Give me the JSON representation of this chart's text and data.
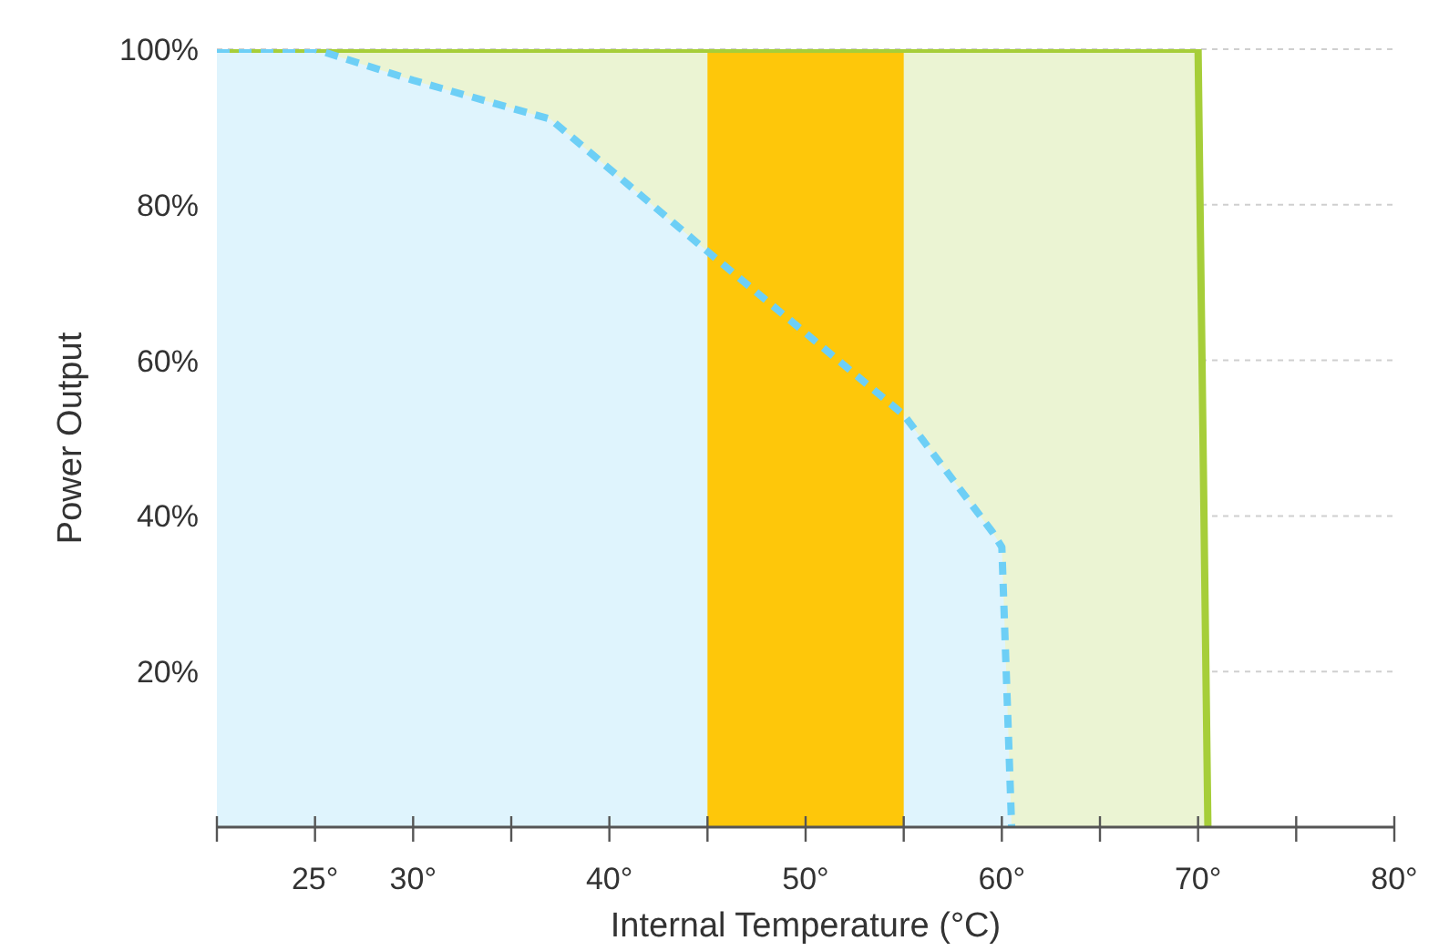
{
  "chart_data": {
    "type": "area",
    "xlabel": "Internal Temperature (°C)",
    "ylabel": "Power Output",
    "xlim": [
      20,
      80
    ],
    "xticks": [
      {
        "value": 20,
        "label": null
      },
      {
        "value": 25,
        "label": "25°"
      },
      {
        "value": 30,
        "label": "30°"
      },
      {
        "value": 35,
        "label": null
      },
      {
        "value": 40,
        "label": "40°"
      },
      {
        "value": 45,
        "label": null
      },
      {
        "value": 50,
        "label": "50°"
      },
      {
        "value": 55,
        "label": null
      },
      {
        "value": 60,
        "label": "60°"
      },
      {
        "value": 65,
        "label": null
      },
      {
        "value": 70,
        "label": "70°"
      },
      {
        "value": 75,
        "label": null
      },
      {
        "value": 80,
        "label": "80°"
      }
    ],
    "ylim": [
      0,
      100
    ],
    "yticks": [
      {
        "value": 20,
        "label": "20%"
      },
      {
        "value": 40,
        "label": "40%"
      },
      {
        "value": 60,
        "label": "60%"
      },
      {
        "value": 80,
        "label": "80%"
      },
      {
        "value": 100,
        "label": "100%"
      }
    ],
    "grid": "y",
    "marker": "none",
    "bands": [
      {
        "axis": "x",
        "from": 45,
        "to": 55,
        "color": "#fec70a"
      }
    ],
    "series": [
      {
        "color": "#a6ce39",
        "line_style": "solid",
        "x": [
          20,
          70,
          70.5
        ],
        "values": [
          100,
          100,
          0
        ]
      },
      {
        "color": "#6dcff6",
        "line_style": "dashed",
        "x": [
          20,
          25,
          30,
          37,
          45,
          55,
          59.5,
          60,
          60.5
        ],
        "values": [
          100,
          100,
          96,
          91,
          74,
          53,
          38,
          36,
          0
        ]
      }
    ]
  }
}
